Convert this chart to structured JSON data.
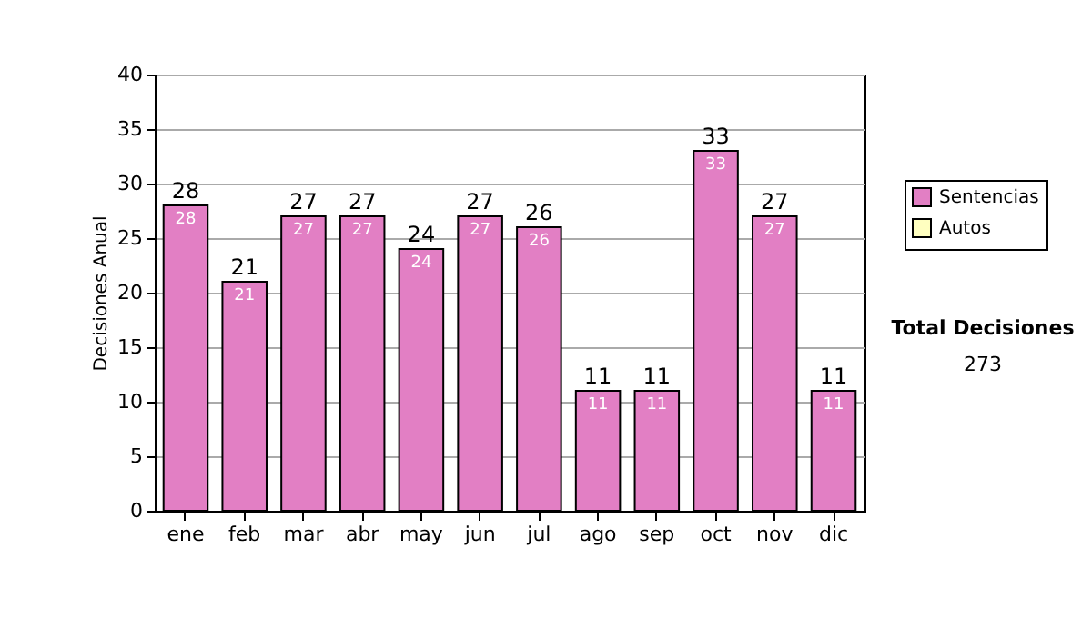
{
  "chart_data": {
    "type": "bar",
    "ylabel": "Decisiones Anual",
    "categories": [
      "ene",
      "feb",
      "mar",
      "abr",
      "may",
      "jun",
      "jul",
      "ago",
      "sep",
      "oct",
      "nov",
      "dic"
    ],
    "stacked": true,
    "series": [
      {
        "name": "Sentencias",
        "color": "#e27fc4",
        "values": [
          28,
          21,
          27,
          27,
          24,
          27,
          26,
          11,
          11,
          33,
          27,
          11
        ]
      },
      {
        "name": "Autos",
        "color": "#ffffc0",
        "values": [
          null,
          null,
          null,
          null,
          null,
          null,
          null,
          null,
          null,
          null,
          null,
          null
        ]
      }
    ],
    "totals": [
      "28",
      "21",
      "27",
      "27",
      "24",
      "27",
      "26",
      "11",
      "11",
      "33",
      "27",
      "11"
    ],
    "data_labels": true,
    "ylim": [
      0,
      40
    ],
    "yticks": [
      0,
      5,
      10,
      15,
      20,
      25,
      30,
      35,
      40
    ],
    "grid": "y",
    "legend": "right",
    "annotations": [
      "Total Decisiones",
      "273"
    ]
  }
}
